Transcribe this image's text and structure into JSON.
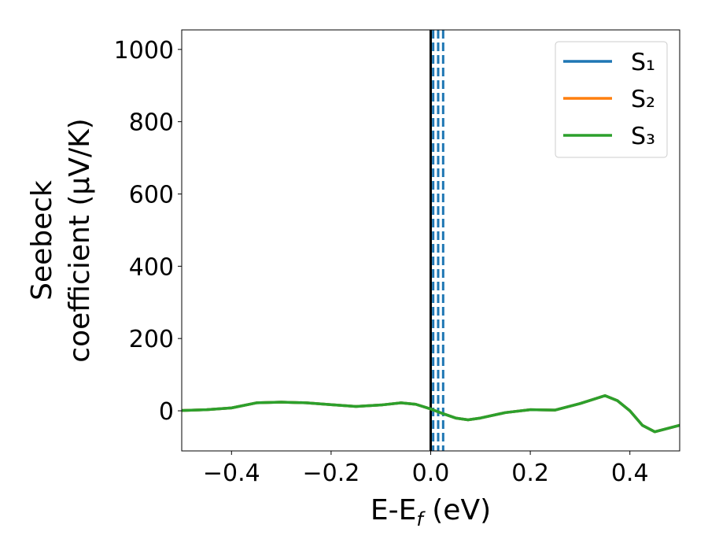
{
  "chart_data": {
    "type": "line",
    "ylabel": [
      "Seebeck",
      "coefficient  (μV/K)"
    ],
    "xlabel": [
      "E-E",
      "f",
      " (eV)"
    ],
    "x": [
      -0.5,
      -0.45,
      -0.4,
      -0.35,
      -0.3,
      -0.25,
      -0.2,
      -0.15,
      -0.1,
      -0.06,
      -0.03,
      0,
      0.025,
      0.05,
      0.075,
      0.1,
      0.15,
      0.2,
      0.25,
      0.3,
      0.35,
      0.375,
      0.4,
      0.425,
      0.45,
      0.5
    ],
    "series": [
      {
        "name": "S₁",
        "color": "#1f77b4",
        "values": [
          1,
          3,
          8,
          22,
          24,
          22,
          17,
          12,
          16,
          22,
          18,
          5,
          -8,
          -20,
          -25,
          -20,
          -5,
          3,
          2,
          20,
          42,
          28,
          0,
          -40,
          -58,
          -40
        ]
      },
      {
        "name": "S₂",
        "color": "#ff7f0e",
        "values": [
          1,
          3,
          8,
          22,
          24,
          22,
          17,
          12,
          16,
          22,
          18,
          5,
          -8,
          -20,
          -25,
          -20,
          -5,
          3,
          2,
          20,
          42,
          28,
          0,
          -40,
          -58,
          -40
        ]
      },
      {
        "name": "S₃",
        "color": "#2ca02c",
        "values": [
          1,
          3,
          8,
          22,
          24,
          22,
          17,
          12,
          16,
          22,
          18,
          5,
          -8,
          -20,
          -25,
          -20,
          -5,
          3,
          2,
          20,
          42,
          28,
          0,
          -40,
          -58,
          -40
        ]
      }
    ],
    "vlines": [
      {
        "x": 0,
        "color": "#000000",
        "style": "solid"
      },
      {
        "x": 0.005,
        "color": "#1f77b4",
        "style": "dashed"
      },
      {
        "x": 0.015,
        "color": "#1f77b4",
        "style": "dashed"
      },
      {
        "x": 0.025,
        "color": "#1f77b4",
        "style": "dashed"
      }
    ],
    "xlim": [
      -0.5,
      0.5
    ],
    "ylim": [
      -111,
      1054
    ],
    "xticks": [
      {
        "value": -0.4,
        "label": "−0.4"
      },
      {
        "value": -0.2,
        "label": "−0.2"
      },
      {
        "value": 0,
        "label": "0.0"
      },
      {
        "value": 0.2,
        "label": "0.2"
      },
      {
        "value": 0.4,
        "label": "0.4"
      }
    ],
    "yticks": [
      0,
      200,
      400,
      600,
      800,
      1000
    ],
    "grid": false,
    "legend": "upper right"
  }
}
